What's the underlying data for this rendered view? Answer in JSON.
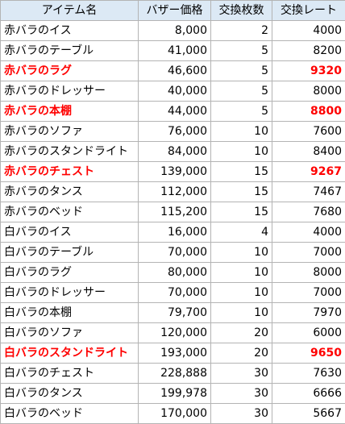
{
  "headers": [
    "アイテム名",
    "バザー価格",
    "交換枚数",
    "交換レート"
  ],
  "highlight_color": "#ff0000",
  "header_bg": "#dce9f5",
  "rows": [
    {
      "name": "赤バラのイス",
      "price": "8,000",
      "count": "2",
      "rate": "4000",
      "highlight": false
    },
    {
      "name": "赤バラのテーブル",
      "price": "41,000",
      "count": "5",
      "rate": "8200",
      "highlight": false
    },
    {
      "name": "赤バラのラグ",
      "price": "46,600",
      "count": "5",
      "rate": "9320",
      "highlight": true
    },
    {
      "name": "赤バラのドレッサー",
      "price": "40,000",
      "count": "5",
      "rate": "8000",
      "highlight": false
    },
    {
      "name": "赤バラの本棚",
      "price": "44,000",
      "count": "5",
      "rate": "8800",
      "highlight": true
    },
    {
      "name": "赤バラのソファ",
      "price": "76,000",
      "count": "10",
      "rate": "7600",
      "highlight": false
    },
    {
      "name": "赤バラのスタンドライト",
      "price": "84,000",
      "count": "10",
      "rate": "8400",
      "highlight": false
    },
    {
      "name": "赤バラのチェスト",
      "price": "139,000",
      "count": "15",
      "rate": "9267",
      "highlight": true
    },
    {
      "name": "赤バラのタンス",
      "price": "112,000",
      "count": "15",
      "rate": "7467",
      "highlight": false
    },
    {
      "name": "赤バラのベッド",
      "price": "115,200",
      "count": "15",
      "rate": "7680",
      "highlight": false
    },
    {
      "name": "白バラのイス",
      "price": "16,000",
      "count": "4",
      "rate": "4000",
      "highlight": false
    },
    {
      "name": "白バラのテーブル",
      "price": "70,000",
      "count": "10",
      "rate": "7000",
      "highlight": false
    },
    {
      "name": "白バラのラグ",
      "price": "80,000",
      "count": "10",
      "rate": "8000",
      "highlight": false
    },
    {
      "name": "白バラのドレッサー",
      "price": "70,000",
      "count": "10",
      "rate": "7000",
      "highlight": false
    },
    {
      "name": "白バラの本棚",
      "price": "79,700",
      "count": "10",
      "rate": "7970",
      "highlight": false
    },
    {
      "name": "白バラのソファ",
      "price": "120,000",
      "count": "20",
      "rate": "6000",
      "highlight": false
    },
    {
      "name": "白バラのスタンドライト",
      "price": "193,000",
      "count": "20",
      "rate": "9650",
      "highlight": true
    },
    {
      "name": "白バラのチェスト",
      "price": "228,888",
      "count": "30",
      "rate": "7630",
      "highlight": false
    },
    {
      "name": "白バラのタンス",
      "price": "199,978",
      "count": "30",
      "rate": "6666",
      "highlight": false
    },
    {
      "name": "白バラのベッド",
      "price": "170,000",
      "count": "30",
      "rate": "5667",
      "highlight": false
    }
  ]
}
